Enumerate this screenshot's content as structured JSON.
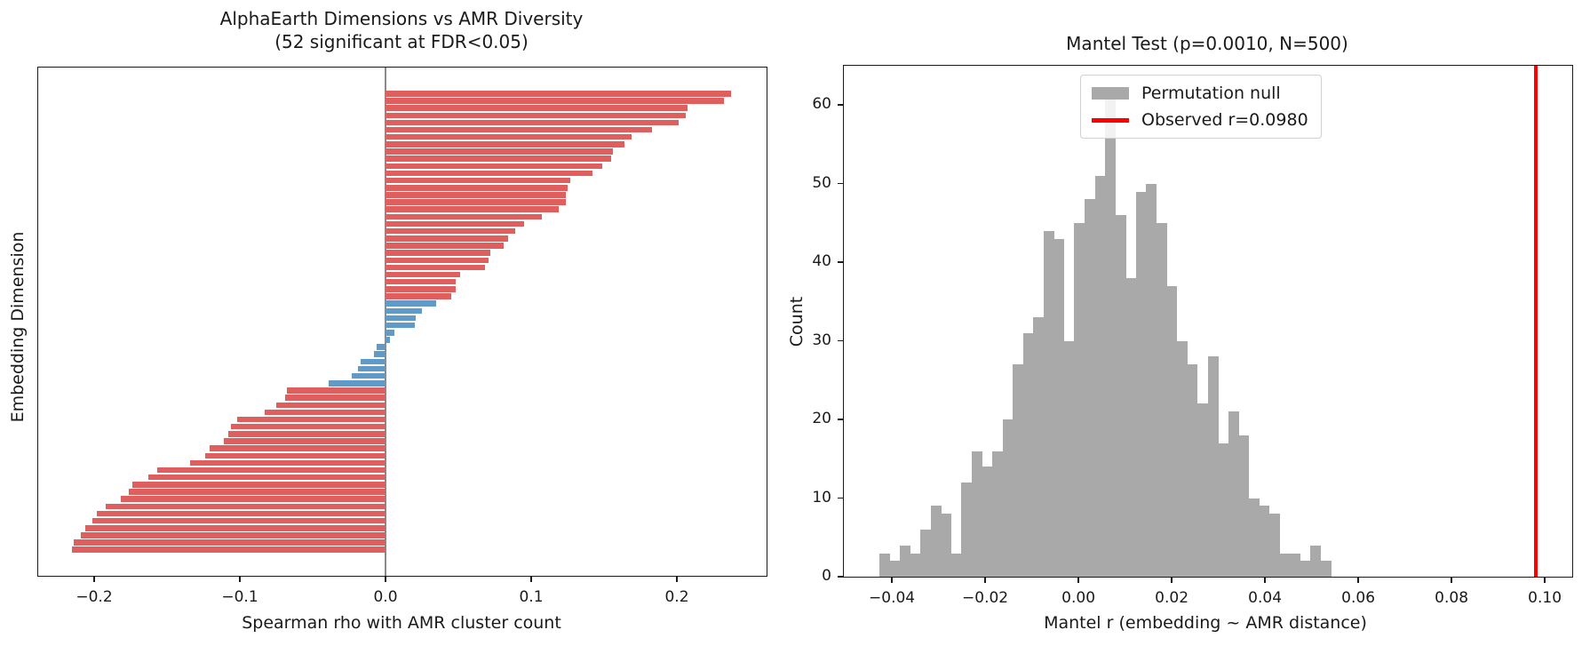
{
  "figure": {
    "background": "#ffffff",
    "frame_color": "#1a1a1a"
  },
  "chart_data": [
    {
      "type": "bar",
      "orientation": "horizontal",
      "title": "AlphaEarth Dimensions vs AMR Diversity",
      "subtitle": "(52 significant at FDR<0.05)",
      "xlabel": "Spearman rho with AMR cluster count",
      "ylabel": "Embedding Dimension",
      "xlim": [
        -0.238,
        0.262
      ],
      "n_bars": 64,
      "n_significant": 52,
      "xticks": {
        "values": [
          -0.2,
          -0.1,
          0.0,
          0.1,
          0.2
        ],
        "labels": [
          "−0.2",
          "−0.1",
          "0.0",
          "0.1",
          "0.2"
        ]
      },
      "colors": {
        "significant": "#df5f5f",
        "not_significant": "#5f9ac8",
        "zero_line": "#8a8a8a"
      },
      "values": [
        0.237,
        0.232,
        0.207,
        0.206,
        0.201,
        0.183,
        0.169,
        0.164,
        0.156,
        0.155,
        0.149,
        0.142,
        0.127,
        0.125,
        0.124,
        0.124,
        0.119,
        0.107,
        0.095,
        0.089,
        0.084,
        0.081,
        0.072,
        0.071,
        0.068,
        0.051,
        0.048,
        0.048,
        0.045,
        0.035,
        0.025,
        0.021,
        0.02,
        0.006,
        0.003,
        -0.006,
        -0.008,
        -0.017,
        -0.019,
        -0.023,
        -0.039,
        -0.068,
        -0.069,
        -0.075,
        -0.083,
        -0.102,
        -0.106,
        -0.108,
        -0.111,
        -0.121,
        -0.124,
        -0.134,
        -0.157,
        -0.163,
        -0.174,
        -0.176,
        -0.182,
        -0.192,
        -0.198,
        -0.201,
        -0.206,
        -0.209,
        -0.214,
        -0.215
      ],
      "significant": [
        1,
        1,
        1,
        1,
        1,
        1,
        1,
        1,
        1,
        1,
        1,
        1,
        1,
        1,
        1,
        1,
        1,
        1,
        1,
        1,
        1,
        1,
        1,
        1,
        1,
        1,
        1,
        1,
        1,
        0,
        0,
        0,
        0,
        0,
        0,
        0,
        0,
        0,
        0,
        0,
        0,
        1,
        1,
        1,
        1,
        1,
        1,
        1,
        1,
        1,
        1,
        1,
        1,
        1,
        1,
        1,
        1,
        1,
        1,
        1,
        1,
        1,
        1,
        1
      ]
    },
    {
      "type": "histogram",
      "title": "Mantel Test (p=0.0010, N=500)",
      "xlabel": "Mantel r (embedding ~ AMR distance)",
      "ylabel": "Count",
      "xlim": [
        -0.0503,
        0.1059
      ],
      "ylim": [
        0,
        65
      ],
      "bin_start": -0.0427,
      "bin_width": 0.0022,
      "counts": [
        3,
        2,
        4,
        3,
        6,
        9,
        8,
        3,
        12,
        16,
        14,
        16,
        20,
        27,
        31,
        33,
        44,
        43,
        30,
        45,
        48,
        51,
        62,
        46,
        38,
        49,
        50,
        45,
        37,
        30,
        27,
        22,
        28,
        17,
        21,
        18,
        10,
        9,
        8,
        3,
        3,
        2,
        4,
        2
      ],
      "observed_r": 0.098,
      "xticks": {
        "values": [
          -0.04,
          -0.02,
          0.0,
          0.02,
          0.04,
          0.06,
          0.08,
          0.1
        ],
        "labels": [
          "−0.04",
          "−0.02",
          "0.00",
          "0.02",
          "0.04",
          "0.06",
          "0.08",
          "0.10"
        ]
      },
      "yticks": {
        "values": [
          0,
          10,
          20,
          30,
          40,
          50,
          60
        ],
        "labels": [
          "0",
          "10",
          "20",
          "30",
          "40",
          "50",
          "60"
        ]
      },
      "colors": {
        "bars": "#a9a9a9",
        "observed_line": "#ff0000",
        "legend_border": "#d2d2d2"
      },
      "legend": {
        "null_label": "Permutation null",
        "observed_label": "Observed r=0.0980"
      }
    }
  ]
}
